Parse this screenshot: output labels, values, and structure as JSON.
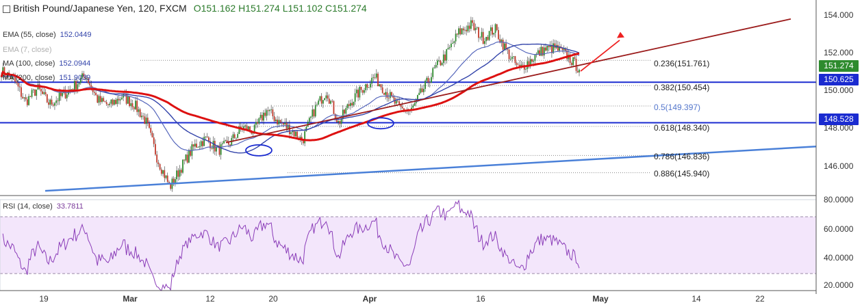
{
  "header": {
    "title": "British Pound/Japanese Yen, 120, FXCM",
    "ohlc": "O151.162  H151.274  L151.102  C151.274"
  },
  "indicators": [
    {
      "label": "EMA (55, close)",
      "value": "152.0449",
      "faint": false
    },
    {
      "label": "EMA (7, close)",
      "value": "",
      "faint": true
    },
    {
      "label": "MA (100, close)",
      "value": "152.0944",
      "faint": false
    },
    {
      "label": "MA (200, close)",
      "value": "151.9039",
      "faint": false
    }
  ],
  "rsi": {
    "label": "RSI (14, close)",
    "value": "33.7811"
  },
  "price_badges": {
    "last": "151.274",
    "level_top": "150.625",
    "level_bottom": "148.528"
  },
  "colors": {
    "last_badge": "#2e8b2e",
    "level_badge": "#1a2bd0",
    "candle_up": "#2e8b2e",
    "candle_down": "#c0392b",
    "ma_red": "#dd1111",
    "ma_blue": "#3344aa",
    "trend_darkred": "#9b1b1b",
    "trend_blue": "#4a80d8",
    "rsi_line": "#8a3cb8",
    "rsi_band": "#f3e6fb"
  },
  "chart_data": {
    "type": "candlestick",
    "y_axis": {
      "ticks": [
        "154.000",
        "152.000",
        "150.000",
        "148.000",
        "146.000"
      ],
      "range": [
        144.9,
        154.6
      ]
    },
    "rsi_axis": {
      "ticks": [
        "80.0000",
        "60.0000",
        "40.0000",
        "20.0000"
      ],
      "range": [
        18,
        82
      ],
      "band": [
        30,
        70
      ]
    },
    "x_axis": {
      "ticks": [
        {
          "label": "19",
          "bold": false
        },
        {
          "label": "Mar",
          "bold": true
        },
        {
          "label": "12",
          "bold": false
        },
        {
          "label": "20",
          "bold": false
        },
        {
          "label": "Apr",
          "bold": true
        },
        {
          "label": "16",
          "bold": false
        },
        {
          "label": "May",
          "bold": true
        },
        {
          "label": "14",
          "bold": false
        },
        {
          "label": "22",
          "bold": false
        }
      ]
    },
    "horizontal_levels": [
      150.625,
      148.528
    ],
    "fibonacci": [
      {
        "label": "0.236(151.761)",
        "value": 151.761
      },
      {
        "label": "0.382(150.454)",
        "value": 150.454
      },
      {
        "label": "0.5(149.397)",
        "value": 149.397
      },
      {
        "label": "0.618(148.340)",
        "value": 148.34
      },
      {
        "label": "0.786(146.836)",
        "value": 146.836
      },
      {
        "label": "0.886(145.940)",
        "value": 145.94
      }
    ],
    "price_path": [
      151.2,
      150.8,
      149.6,
      150.3,
      149.5,
      149.9,
      150.4,
      151.0,
      149.7,
      149.4,
      149.9,
      149.5,
      148.6,
      146.6,
      145.2,
      146.3,
      147.3,
      147.7,
      147.1,
      147.5,
      148.3,
      148.1,
      149.2,
      148.6,
      148.2,
      147.6,
      149.2,
      150.2,
      148.5,
      149.6,
      150.3,
      150.9,
      150.1,
      149.3,
      149.1,
      150.2,
      151.3,
      152.1,
      153.2,
      153.6,
      152.9,
      153.4,
      152.2,
      151.3,
      151.8,
      152.3,
      152.4,
      152.0,
      151.3
    ]
  }
}
